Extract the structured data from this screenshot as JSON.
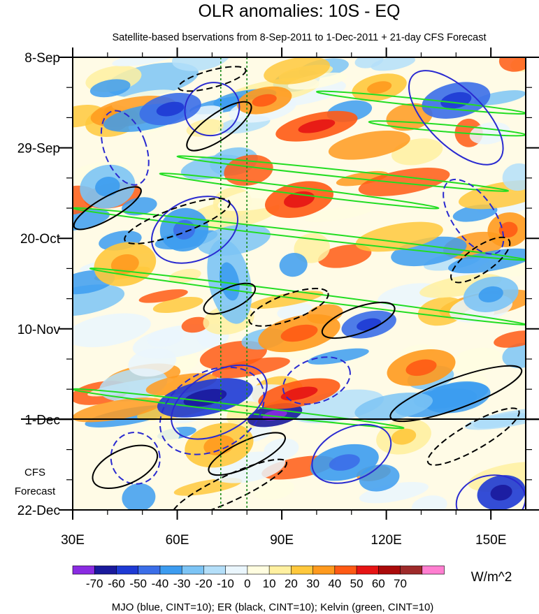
{
  "chart_data": {
    "type": "heatmap",
    "title": "OLR anomalies: 10S - EQ",
    "subtitle": "Satellite-based bservations from 8-Sep-2011 to 1-Dec-2011 + 21-day CFS Forecast",
    "x_ticks": [
      {
        "value": 30,
        "label": "30E"
      },
      {
        "value": 60,
        "label": "60E"
      },
      {
        "value": 90,
        "label": "90E"
      },
      {
        "value": 120,
        "label": "120E"
      },
      {
        "value": 150,
        "label": "150E"
      }
    ],
    "xlim": [
      30,
      160
    ],
    "y_ticks": [
      {
        "day": 0,
        "label": "8-Sep"
      },
      {
        "day": 21,
        "label": "29-Sep"
      },
      {
        "day": 42,
        "label": "20-Oct"
      },
      {
        "day": 63,
        "label": "10-Nov"
      },
      {
        "day": 84,
        "label": "1-Dec"
      },
      {
        "day": 105,
        "label": "22-Dec"
      }
    ],
    "ylim_days": [
      0,
      105
    ],
    "forecast_start_day": 84,
    "forecast_label": [
      "CFS",
      "Forecast"
    ],
    "vertical_guides_lon": [
      72.5,
      80
    ],
    "colorbar": {
      "unit": "W/m^2",
      "labels": [
        "-70",
        "-60",
        "-50",
        "-40",
        "-30",
        "-20",
        "-10",
        "0",
        "10",
        "20",
        "30",
        "40",
        "50",
        "60",
        "70"
      ],
      "colors": [
        "#8a2be2",
        "#1a1a9c",
        "#1e3ad4",
        "#3b6ee8",
        "#3c9cf0",
        "#7cc4f5",
        "#b4dff9",
        "#eaf6fd",
        "#fffde0",
        "#fff0a0",
        "#ffc83c",
        "#ff9a1e",
        "#ff5a14",
        "#e61414",
        "#aa0a0a",
        "#9e2a2a",
        "#ff7ed0"
      ]
    },
    "footer": "MJO (blue, CINT=10); ER (black, CINT=10); Kelvin (green, CINT=10)",
    "series_colors": {
      "mjo": "#2a2ad0",
      "er": "#000000",
      "kelvin": "#22dd22"
    },
    "anomaly_blobs": [
      {
        "lon": 85,
        "day": 10,
        "rx": 8,
        "ry": 3,
        "value": 35
      },
      {
        "lon": 100,
        "day": 16,
        "rx": 12,
        "ry": 3,
        "value": 45
      },
      {
        "lon": 58,
        "day": 12,
        "rx": 9,
        "ry": 3.5,
        "value": -45
      },
      {
        "lon": 140,
        "day": 10,
        "rx": 10,
        "ry": 4,
        "value": -45
      },
      {
        "lon": 118,
        "day": 7,
        "rx": 8,
        "ry": 3,
        "value": 25
      },
      {
        "lon": 95,
        "day": 33,
        "rx": 10,
        "ry": 4,
        "value": 45
      },
      {
        "lon": 62,
        "day": 40,
        "rx": 7,
        "ry": 5,
        "value": -40
      },
      {
        "lon": 40,
        "day": 30,
        "rx": 8,
        "ry": 5,
        "value": -30
      },
      {
        "lon": 45,
        "day": 48,
        "rx": 9,
        "ry": 5,
        "value": 25
      },
      {
        "lon": 75,
        "day": 52,
        "rx": 6,
        "ry": 10,
        "value": -30
      },
      {
        "lon": 115,
        "day": 62,
        "rx": 8,
        "ry": 3,
        "value": -50
      },
      {
        "lon": 95,
        "day": 64,
        "rx": 12,
        "ry": 4,
        "value": 30
      },
      {
        "lon": 130,
        "day": 72,
        "rx": 10,
        "ry": 4,
        "value": 35
      },
      {
        "lon": 68,
        "day": 79,
        "rx": 14,
        "ry": 4,
        "value": -55
      },
      {
        "lon": 88,
        "day": 83,
        "rx": 8,
        "ry": 2.5,
        "value": -65
      },
      {
        "lon": 95,
        "day": 78,
        "rx": 12,
        "ry": 3,
        "value": 40
      },
      {
        "lon": 72,
        "day": 90,
        "rx": 10,
        "ry": 5,
        "value": 20
      },
      {
        "lon": 108,
        "day": 94,
        "rx": 10,
        "ry": 4,
        "value": -35
      },
      {
        "lon": 153,
        "day": 101,
        "rx": 7,
        "ry": 4,
        "value": -60
      },
      {
        "lon": 125,
        "day": 88,
        "rx": 8,
        "ry": 4,
        "value": 15
      },
      {
        "lon": 150,
        "day": 55,
        "rx": 8,
        "ry": 4,
        "value": -25
      },
      {
        "lon": 155,
        "day": 40,
        "rx": 6,
        "ry": 4,
        "value": 35
      }
    ],
    "mjo_ellipses": [
      {
        "lon": 70,
        "day": 12,
        "rx": 8,
        "ry": 6,
        "rot": -35,
        "dash": false
      },
      {
        "lon": 45,
        "day": 21,
        "rx": 6,
        "ry": 9,
        "rot": -20,
        "dash": true
      },
      {
        "lon": 65,
        "day": 40,
        "rx": 13,
        "ry": 7,
        "rot": -25,
        "dash": false
      },
      {
        "lon": 140,
        "day": 14,
        "rx": 8,
        "ry": 14,
        "rot": -45,
        "dash": false
      },
      {
        "lon": 145,
        "day": 37,
        "rx": 6,
        "ry": 10,
        "rot": -35,
        "dash": true
      },
      {
        "lon": 72,
        "day": 80,
        "rx": 15,
        "ry": 7,
        "rot": -30,
        "dash": false
      },
      {
        "lon": 70,
        "day": 82,
        "rx": 16,
        "ry": 9,
        "rot": -30,
        "dash": true
      },
      {
        "lon": 110,
        "day": 92,
        "rx": 12,
        "ry": 6,
        "rot": -25,
        "dash": false
      },
      {
        "lon": 100,
        "day": 75,
        "rx": 10,
        "ry": 5,
        "rot": -20,
        "dash": true
      },
      {
        "lon": 150,
        "day": 103,
        "rx": 10,
        "ry": 6,
        "rot": -10,
        "dash": false
      },
      {
        "lon": 48,
        "day": 93,
        "rx": 7,
        "ry": 6,
        "rot": -15,
        "dash": true
      }
    ],
    "er_ellipses": [
      {
        "lon": 72,
        "day": 16,
        "rx": 11,
        "ry": 3,
        "rot": -35,
        "dash": false
      },
      {
        "lon": 70,
        "day": 5,
        "rx": 10,
        "ry": 2,
        "rot": -15,
        "dash": true
      },
      {
        "lon": 60,
        "day": 38,
        "rx": 16,
        "ry": 3,
        "rot": -20,
        "dash": true
      },
      {
        "lon": 40,
        "day": 35,
        "rx": 11,
        "ry": 2.5,
        "rot": -30,
        "dash": false
      },
      {
        "lon": 75,
        "day": 56,
        "rx": 8,
        "ry": 2.5,
        "rot": -25,
        "dash": false
      },
      {
        "lon": 92,
        "day": 58,
        "rx": 12,
        "ry": 3,
        "rot": -20,
        "dash": true
      },
      {
        "lon": 112,
        "day": 61,
        "rx": 11,
        "ry": 3,
        "rot": -20,
        "dash": false
      },
      {
        "lon": 147,
        "day": 47,
        "rx": 10,
        "ry": 3,
        "rot": -35,
        "dash": true
      },
      {
        "lon": 140,
        "day": 78,
        "rx": 20,
        "ry": 3.5,
        "rot": -20,
        "dash": false
      },
      {
        "lon": 145,
        "day": 88,
        "rx": 15,
        "ry": 3,
        "rot": -30,
        "dash": true
      },
      {
        "lon": 80,
        "day": 92,
        "rx": 12,
        "ry": 3,
        "rot": -25,
        "dash": false
      },
      {
        "lon": 45,
        "day": 95,
        "rx": 10,
        "ry": 4,
        "rot": -25,
        "dash": false
      },
      {
        "lon": 75,
        "day": 100,
        "rx": 18,
        "ry": 3,
        "rot": -25,
        "dash": true
      }
    ],
    "kelvin_bands": [
      {
        "lon1": 60,
        "day1": 23,
        "lon2": 155,
        "day2": 31
      },
      {
        "lon1": 55,
        "day1": 27,
        "lon2": 135,
        "day2": 35
      },
      {
        "lon1": 30,
        "day1": 35,
        "lon2": 160,
        "day2": 47
      },
      {
        "lon1": 35,
        "day1": 49,
        "lon2": 160,
        "day2": 62
      },
      {
        "lon1": 30,
        "day1": 77,
        "lon2": 125,
        "day2": 86
      },
      {
        "lon1": 100,
        "day1": 8,
        "lon2": 160,
        "day2": 13
      },
      {
        "lon1": 115,
        "day1": 15,
        "lon2": 160,
        "day2": 18
      }
    ]
  }
}
